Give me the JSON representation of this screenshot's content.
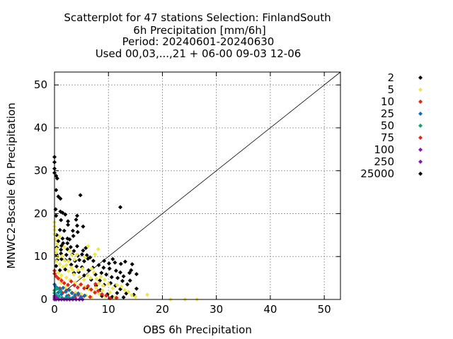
{
  "chart_data": {
    "type": "scatter",
    "title_lines": [
      "Scatterplot for   47 stations Selection: FinlandSouth",
      "6h Precipitation [mm/6h]",
      "Period: 20240601-20240630",
      "Used 00,03,...,21 + 06-00 09-03 12-06"
    ],
    "xlabel": "OBS 6h Precipitation",
    "ylabel": "MNWC2-Bscale 6h Precipitation",
    "xlim": [
      0,
      53
    ],
    "ylim": [
      0,
      53
    ],
    "xticks": [
      0,
      10,
      20,
      30,
      40,
      50
    ],
    "yticks": [
      0,
      10,
      20,
      30,
      40,
      50
    ],
    "grid": true,
    "diagonal_line": true,
    "legend_position": "right",
    "marker": "diamond",
    "series": [
      {
        "name": "2",
        "color": "#000000",
        "points": []
      },
      {
        "name": "5",
        "color": "#ede64c",
        "points": []
      },
      {
        "name": "10",
        "color": "#e0251b",
        "points": []
      },
      {
        "name": "25",
        "color": "#0f72b0",
        "points": []
      },
      {
        "name": "50",
        "color": "#10a07a",
        "points": []
      },
      {
        "name": "75",
        "color": "#e0251b",
        "points": []
      },
      {
        "name": "100",
        "color": "#8b14b8",
        "points": []
      },
      {
        "name": "250",
        "color": "#8b14b8",
        "points": []
      },
      {
        "name": "25000",
        "color": "#000000",
        "points": [
          [
            0,
            33.2
          ],
          [
            0,
            32
          ],
          [
            0,
            30.5
          ],
          [
            0,
            29.5
          ],
          [
            0.3,
            28.8
          ],
          [
            0.5,
            28.2
          ],
          [
            0.3,
            25.5
          ],
          [
            0.7,
            24
          ],
          [
            1.1,
            23.5
          ],
          [
            4.8,
            24.3
          ],
          [
            0.2,
            21
          ],
          [
            1.1,
            20.5
          ],
          [
            1.5,
            20.2
          ],
          [
            2,
            19.8
          ],
          [
            0.3,
            19.5
          ],
          [
            4.2,
            19.5
          ],
          [
            12.2,
            21.5
          ],
          [
            1.2,
            18.5
          ],
          [
            2.5,
            18.2
          ],
          [
            4,
            18.6
          ],
          [
            2.5,
            17.4
          ],
          [
            4.2,
            17.2
          ],
          [
            5.3,
            17
          ],
          [
            1,
            16.2
          ],
          [
            1.8,
            16
          ],
          [
            3.4,
            16
          ],
          [
            4.3,
            15.7
          ],
          [
            0.4,
            15
          ],
          [
            1.5,
            14.2
          ],
          [
            2.4,
            14.2
          ],
          [
            2.8,
            14
          ],
          [
            3.5,
            14.8
          ],
          [
            0.7,
            13.6
          ],
          [
            1.6,
            13.1
          ],
          [
            2.4,
            13.1
          ],
          [
            3,
            12.2
          ],
          [
            4.2,
            12.4
          ],
          [
            0.4,
            12.1
          ],
          [
            1.3,
            12.5
          ],
          [
            1.2,
            11.6
          ],
          [
            2.4,
            11.7
          ],
          [
            3.6,
            11.3
          ],
          [
            5.3,
            11.4
          ],
          [
            5.8,
            12
          ],
          [
            0.4,
            10.4
          ],
          [
            1.2,
            10.7
          ],
          [
            2.2,
            10.4
          ],
          [
            3.3,
            10.5
          ],
          [
            4.3,
            10.2
          ],
          [
            5.1,
            10.5
          ],
          [
            6,
            10.3
          ],
          [
            6.6,
            9.8
          ],
          [
            0.5,
            9.2
          ],
          [
            1.3,
            9.4
          ],
          [
            2,
            9.2
          ],
          [
            2.8,
            9.3
          ],
          [
            3.8,
            9
          ],
          [
            4.6,
            9.2
          ],
          [
            5.5,
            8.9
          ],
          [
            6.2,
            9.5
          ],
          [
            7.2,
            9
          ],
          [
            9.2,
            9
          ],
          [
            10.1,
            8.4
          ],
          [
            11.2,
            8.6
          ],
          [
            12.3,
            8.3
          ],
          [
            13.1,
            8.8
          ],
          [
            14.4,
            8.2
          ],
          [
            14.2,
            6.8
          ],
          [
            15.2,
            5.9
          ],
          [
            12.8,
            5.4
          ],
          [
            14,
            4.4
          ],
          [
            13.5,
            3.5
          ],
          [
            15.2,
            2.5
          ],
          [
            8.2,
            8
          ],
          [
            9.1,
            7.4
          ],
          [
            10.2,
            7.2
          ],
          [
            11.4,
            6.7
          ],
          [
            12.2,
            6.3
          ],
          [
            8.7,
            6.2
          ],
          [
            9.6,
            5.8
          ],
          [
            10.6,
            5.2
          ],
          [
            11.7,
            5
          ],
          [
            12.6,
            4.3
          ],
          [
            8.4,
            4.4
          ],
          [
            9.2,
            3.4
          ],
          [
            10.4,
            3.8
          ],
          [
            11.3,
            3.2
          ],
          [
            12.2,
            2.4
          ],
          [
            11.6,
            1.5
          ],
          [
            13.3,
            1.4
          ],
          [
            14.7,
            1.1
          ],
          [
            9.8,
            1.2
          ],
          [
            8.5,
            2.2
          ],
          [
            7.1,
            7.4
          ],
          [
            6.3,
            6.8
          ],
          [
            7.6,
            5.8
          ],
          [
            6.8,
            4.6
          ],
          [
            7.7,
            3.2
          ],
          [
            6.2,
            2.6
          ],
          [
            5.5,
            5.6
          ],
          [
            5.1,
            7.5
          ],
          [
            4.1,
            7.7
          ],
          [
            3.1,
            8.1
          ],
          [
            1,
            6.8
          ],
          [
            2,
            7
          ],
          [
            3.6,
            6.2
          ],
          [
            4.5,
            6.4
          ],
          [
            0.3,
            7.8
          ],
          [
            10.7,
            0.6
          ],
          [
            12.8,
            0.5
          ],
          [
            8.8,
            0.8
          ],
          [
            13.9,
            6.2
          ],
          [
            10.8,
            9.4
          ]
        ]
      }
    ],
    "extra_points": [
      {
        "color": "#ede64c",
        "points": [
          [
            0,
            18
          ],
          [
            0,
            17
          ],
          [
            0,
            16.2
          ],
          [
            0,
            15.2
          ],
          [
            0.2,
            14
          ],
          [
            0.5,
            12.9
          ],
          [
            0.4,
            11.8
          ],
          [
            0.3,
            10.9
          ],
          [
            0.6,
            9.9
          ],
          [
            0.4,
            8.9
          ],
          [
            1,
            8.2
          ],
          [
            1.6,
            7.6
          ],
          [
            2.2,
            8
          ],
          [
            3.1,
            7.4
          ],
          [
            2.6,
            6.6
          ],
          [
            3.6,
            5.8
          ],
          [
            4.4,
            6.8
          ],
          [
            5.2,
            7.2
          ],
          [
            4.6,
            5.2
          ],
          [
            5.5,
            4.6
          ],
          [
            6.1,
            5.6
          ],
          [
            6.7,
            5
          ],
          [
            7.3,
            6.3
          ],
          [
            7.8,
            4.8
          ],
          [
            8.6,
            5.3
          ],
          [
            9.3,
            4.6
          ],
          [
            8.2,
            3.8
          ],
          [
            9,
            3.2
          ],
          [
            10,
            3.6
          ],
          [
            10.8,
            2.6
          ],
          [
            11.6,
            3.4
          ],
          [
            12.4,
            3
          ],
          [
            13,
            2.2
          ],
          [
            13.7,
            1.8
          ],
          [
            14.3,
            1
          ],
          [
            15,
            0.6
          ],
          [
            17.2,
            1.1
          ],
          [
            24.2,
            0
          ],
          [
            26.4,
            0
          ],
          [
            21.5,
            0
          ],
          [
            1.4,
            10.1
          ],
          [
            1.9,
            9.1
          ],
          [
            2.6,
            8.9
          ],
          [
            3.7,
            9.3
          ],
          [
            6.9,
            7.2
          ],
          [
            7.5,
            10.5
          ],
          [
            5.7,
            9.8
          ],
          [
            4.1,
            10.4
          ],
          [
            0.7,
            6.2
          ],
          [
            1.3,
            5.6
          ],
          [
            2.2,
            5.1
          ],
          [
            2.9,
            4.5
          ],
          [
            3.8,
            3.9
          ],
          [
            4.7,
            3.4
          ],
          [
            5.6,
            2.9
          ],
          [
            6.4,
            2.3
          ],
          [
            7.4,
            1.8
          ],
          [
            8.3,
            1.3
          ],
          [
            9.4,
            0.7
          ],
          [
            11.2,
            0.5
          ],
          [
            1.2,
            3.9
          ],
          [
            2,
            2.9
          ],
          [
            2.9,
            2.2
          ],
          [
            3.9,
            1.6
          ],
          [
            4.9,
            1.3
          ],
          [
            5.9,
            0.9
          ],
          [
            6.9,
            0.5
          ],
          [
            7.7,
            2.7
          ],
          [
            8.9,
            2.1
          ],
          [
            10.3,
            1.6
          ],
          [
            1.1,
            4.9
          ],
          [
            3.4,
            6.8
          ],
          [
            6.2,
            12.4
          ],
          [
            8.1,
            11.7
          ],
          [
            0.9,
            14.7
          ],
          [
            1.8,
            12.2
          ],
          [
            2.8,
            11.3
          ],
          [
            3.2,
            10.3
          ]
        ]
      },
      {
        "color": "#e0251b",
        "points": [
          [
            0,
            6.7
          ],
          [
            0,
            6
          ],
          [
            0.3,
            5.4
          ],
          [
            0.7,
            4.9
          ],
          [
            1.3,
            4.4
          ],
          [
            1.8,
            3.8
          ],
          [
            2.5,
            3.4
          ],
          [
            3.1,
            4.2
          ],
          [
            3.7,
            3.3
          ],
          [
            4.3,
            2.8
          ],
          [
            4.9,
            3.5
          ],
          [
            5.5,
            2.6
          ],
          [
            6.2,
            3.1
          ],
          [
            6.8,
            2.3
          ],
          [
            7.5,
            1.6
          ],
          [
            8.1,
            2
          ],
          [
            8.8,
            1.2
          ],
          [
            9.6,
            0.9
          ],
          [
            10.3,
            0.3
          ],
          [
            11.5,
            0.4
          ],
          [
            2.2,
            2.1
          ],
          [
            3.3,
            1.5
          ],
          [
            4.4,
            1.1
          ],
          [
            5.5,
            0.8
          ],
          [
            6.6,
            0.6
          ],
          [
            1,
            2.6
          ],
          [
            1.5,
            1.5
          ],
          [
            2.6,
            0.9
          ],
          [
            3.8,
            0.6
          ],
          [
            7.6,
            3.6
          ]
        ]
      },
      {
        "color": "#0f72b0",
        "points": [
          [
            0,
            3.5
          ],
          [
            0.2,
            3
          ],
          [
            0.6,
            2.6
          ],
          [
            1.1,
            2.2
          ],
          [
            1.6,
            2.7
          ],
          [
            2.1,
            1.8
          ],
          [
            2.7,
            2.2
          ],
          [
            3.2,
            1.5
          ],
          [
            3.8,
            1
          ],
          [
            4.4,
            1.4
          ],
          [
            4.9,
            0.6
          ],
          [
            5.6,
            0.9
          ],
          [
            1.3,
            1.2
          ],
          [
            2.3,
            0.8
          ],
          [
            0.7,
            1.6
          ],
          [
            3.4,
            0.4
          ]
        ]
      },
      {
        "color": "#10a07a",
        "points": [
          [
            0,
            2.1
          ],
          [
            0,
            1.5
          ],
          [
            0.3,
            1
          ],
          [
            0.8,
            0.7
          ],
          [
            1.4,
            0.4
          ],
          [
            2,
            0.2
          ],
          [
            2.6,
            0.5
          ],
          [
            3.1,
            0.2
          ],
          [
            0.4,
            2.5
          ],
          [
            1.1,
            1.9
          ]
        ]
      },
      {
        "color": "#8b14b8",
        "points": [
          [
            0,
            0
          ],
          [
            0,
            0.4
          ],
          [
            0.3,
            0
          ],
          [
            0.8,
            0
          ],
          [
            1.3,
            0
          ],
          [
            1.8,
            0
          ],
          [
            2.3,
            0
          ],
          [
            2.8,
            0
          ],
          [
            3.4,
            0
          ],
          [
            4,
            0
          ],
          [
            4.6,
            0
          ],
          [
            5.2,
            0
          ],
          [
            0,
            0.8
          ],
          [
            0.4,
            0.3
          ]
        ]
      }
    ]
  }
}
